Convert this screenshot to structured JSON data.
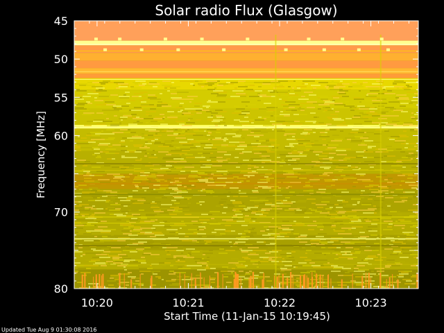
{
  "chart_data": {
    "type": "heatmap",
    "title": "Solar radio Flux (Glasgow)",
    "ylabel": "Frequency [MHz]",
    "xlabel": "Start Time (11-Jan-15 10:19:45)",
    "footer": "Updated Tue Aug  9 01:30:08 2016",
    "ylim": [
      45,
      80
    ],
    "y_inverted": true,
    "xlim_minutes": [
      0,
      3.77
    ],
    "y_ticks": [
      {
        "value": 45,
        "label": "45"
      },
      {
        "value": 50,
        "label": "50"
      },
      {
        "value": 55,
        "label": "55"
      },
      {
        "value": 60,
        "label": "60"
      },
      {
        "value": 70,
        "label": "70"
      },
      {
        "value": 80,
        "label": "80"
      }
    ],
    "x_ticks": [
      {
        "value": 0.25,
        "label": "10:20"
      },
      {
        "value": 1.25,
        "label": "10:21"
      },
      {
        "value": 2.25,
        "label": "10:22"
      },
      {
        "value": 3.25,
        "label": "10:23"
      }
    ],
    "colors": {
      "high": "#ff9a4a",
      "upper": "#ffb040",
      "band_bright": "#ffff70",
      "mid": "#c8c400",
      "low": "#a8a000",
      "dark": "#948c00"
    },
    "bands": [
      {
        "from": 45.0,
        "to": 47.6,
        "color": "#ffa05a"
      },
      {
        "from": 47.6,
        "to": 48.2,
        "color": "#ffff90"
      },
      {
        "from": 48.2,
        "to": 49.2,
        "color": "#ff9a4a"
      },
      {
        "from": 49.2,
        "to": 50.2,
        "color": "#ffb030"
      },
      {
        "from": 50.2,
        "to": 51.2,
        "color": "#ff9a40"
      },
      {
        "from": 51.2,
        "to": 51.9,
        "color": "#ffb830"
      },
      {
        "from": 51.9,
        "to": 52.5,
        "color": "#ff9c38"
      },
      {
        "from": 52.5,
        "to": 54.0,
        "color": "#e8d800"
      },
      {
        "from": 54.0,
        "to": 56.5,
        "color": "#d4cc00"
      },
      {
        "from": 56.5,
        "to": 58.6,
        "color": "#ccc400"
      },
      {
        "from": 58.6,
        "to": 59.0,
        "color": "#ffff60"
      },
      {
        "from": 59.0,
        "to": 62.0,
        "color": "#c4bc00"
      },
      {
        "from": 62.0,
        "to": 65.0,
        "color": "#b8b000"
      },
      {
        "from": 65.0,
        "to": 67.0,
        "color": "#c09800"
      },
      {
        "from": 67.0,
        "to": 70.0,
        "color": "#aca400"
      },
      {
        "from": 70.0,
        "to": 73.0,
        "color": "#b4ac00"
      },
      {
        "from": 73.0,
        "to": 75.0,
        "color": "#a8a000"
      },
      {
        "from": 75.0,
        "to": 77.5,
        "color": "#b4ac00"
      },
      {
        "from": 77.5,
        "to": 80.0,
        "color": "#9c9400"
      }
    ]
  }
}
